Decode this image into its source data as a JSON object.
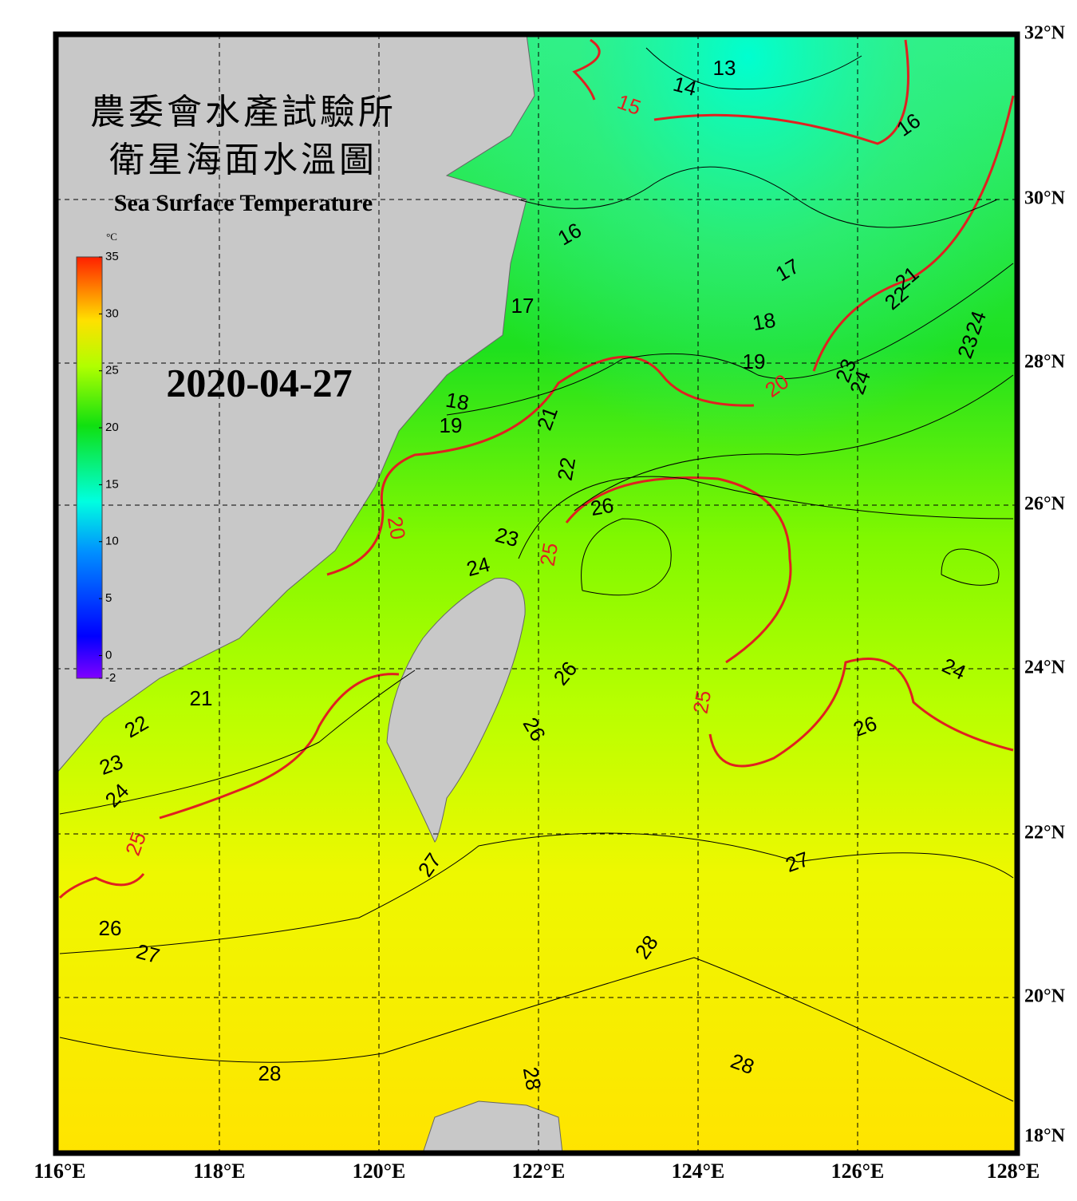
{
  "header": {
    "title_zh_1": "農委會水產試驗所",
    "title_zh_2": "衛星海面水溫圖",
    "title_en": "Sea Surface Temperature",
    "date": "2020-04-27"
  },
  "colorbar": {
    "unit": "°C",
    "range": [
      -2,
      35
    ],
    "ticks": [
      -2,
      0,
      5,
      10,
      15,
      20,
      25,
      30,
      35
    ]
  },
  "longitude_labels": [
    "116°E",
    "118°E",
    "120°E",
    "122°E",
    "124°E",
    "126°E",
    "128°E"
  ],
  "latitude_labels": [
    "32°N",
    "30°N",
    "28°N",
    "26°N",
    "24°N",
    "22°N",
    "20°N",
    "18°N"
  ],
  "isotherm_labels": [
    13,
    14,
    15,
    16,
    16,
    17,
    17,
    18,
    19,
    20,
    21,
    22,
    23,
    24,
    24,
    23,
    18,
    19,
    21,
    22,
    26,
    20,
    23,
    25,
    24,
    26,
    24,
    25,
    26,
    26,
    21,
    22,
    23,
    24,
    25,
    27,
    27,
    28,
    26,
    27,
    28,
    28,
    28
  ]
}
